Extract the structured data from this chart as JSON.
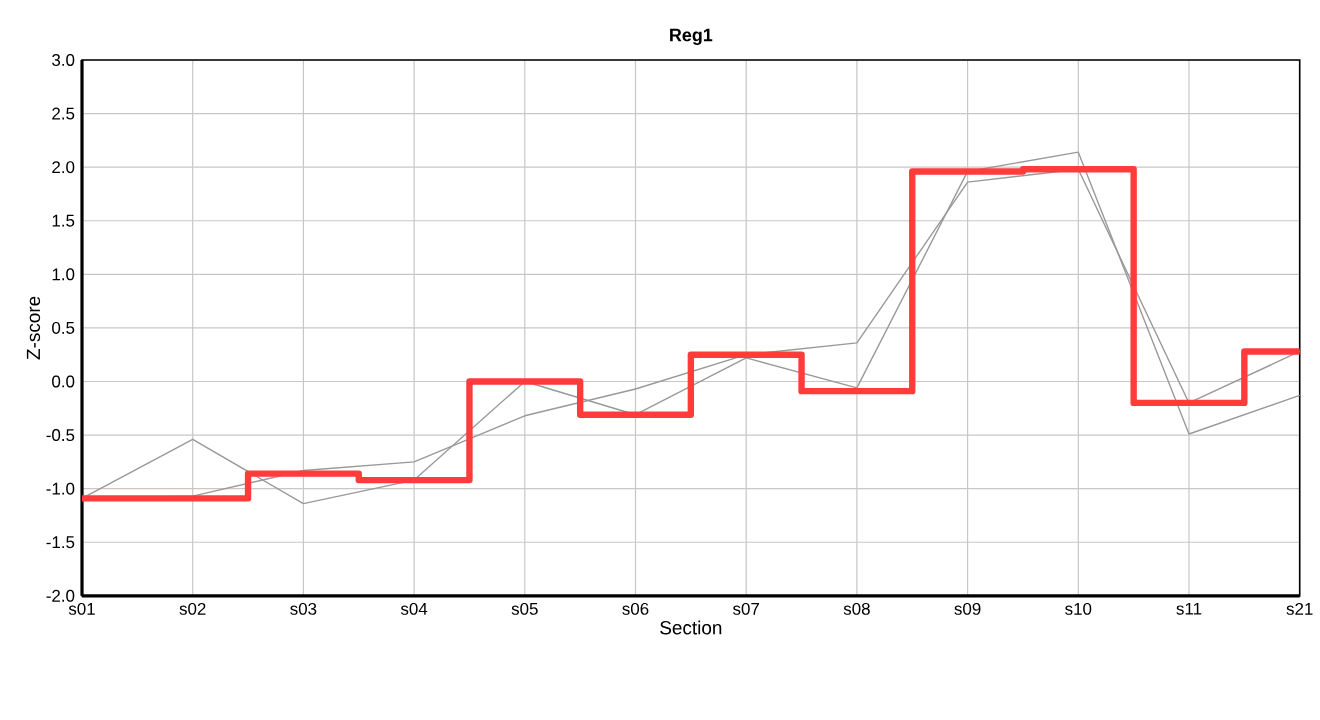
{
  "chart_data": {
    "type": "line",
    "title": "Reg1",
    "xlabel": "Section",
    "ylabel": "Z-score",
    "categories": [
      "s01",
      "s02",
      "s03",
      "s04",
      "s05",
      "s06",
      "s07",
      "s08",
      "s09",
      "s10",
      "s11",
      "s21"
    ],
    "series": [
      {
        "color": "#999999",
        "values": [
          -1.09,
          -0.54,
          -1.14,
          -0.92,
          0.0,
          -0.31,
          0.22,
          -0.06,
          1.96,
          2.14,
          -0.49,
          -0.13
        ]
      },
      {
        "color": "#999999",
        "values": [
          -1.09,
          -1.07,
          -0.83,
          -0.75,
          -0.32,
          -0.07,
          0.25,
          0.36,
          1.86,
          1.98,
          -0.2,
          0.28
        ]
      },
      {
        "type": "step",
        "color": "#ff3b3b",
        "values": [
          -1.09,
          -1.09,
          -0.86,
          -0.92,
          0.0,
          -0.31,
          0.25,
          -0.09,
          1.96,
          1.98,
          -0.2,
          0.28
        ]
      }
    ],
    "ylim": [
      -2,
      3
    ],
    "yticks": [
      {
        "value": -2,
        "label": "-2.0"
      },
      {
        "value": -1.5,
        "label": "-1.5"
      },
      {
        "value": -1,
        "label": "-1.0"
      },
      {
        "value": -0.5,
        "label": "-0.5"
      },
      {
        "value": 0,
        "label": "0.0"
      },
      {
        "value": 0.5,
        "label": "0.5"
      },
      {
        "value": 1,
        "label": "1.0"
      },
      {
        "value": 1.5,
        "label": "1.5"
      },
      {
        "value": 2,
        "label": "2.0"
      },
      {
        "value": 2.5,
        "label": "2.5"
      },
      {
        "value": 3,
        "label": "3.0"
      }
    ],
    "grid": true,
    "marker": "none",
    "line_style": "solid"
  }
}
